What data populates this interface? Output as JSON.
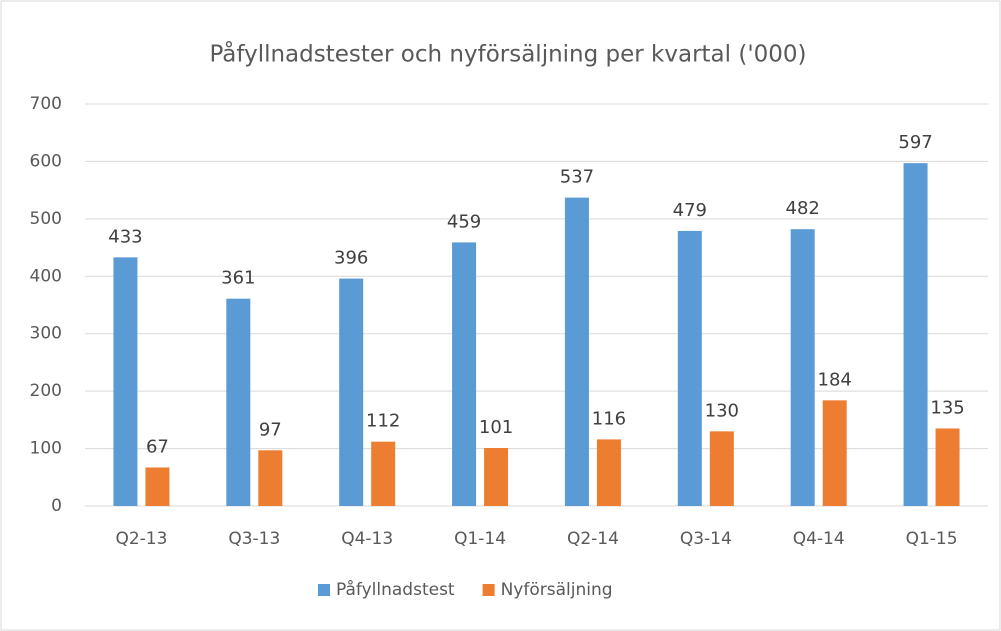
{
  "chart_data": {
    "type": "bar",
    "title": "Påfyllnadstester och nyförsäljning per kvartal ('000)",
    "categories": [
      "Q2-13",
      "Q3-13",
      "Q4-13",
      "Q1-14",
      "Q2-14",
      "Q3-14",
      "Q4-14",
      "Q1-15"
    ],
    "series": [
      {
        "name": "Påfyllnadstest",
        "color": "#5b9bd5",
        "values": [
          433,
          361,
          396,
          459,
          537,
          479,
          482,
          597
        ]
      },
      {
        "name": "Nyförsäljning",
        "color": "#ed7d31",
        "values": [
          67,
          97,
          112,
          101,
          116,
          130,
          184,
          135
        ]
      }
    ],
    "ylim": [
      0,
      700
    ],
    "yticks": [
      0,
      100,
      200,
      300,
      400,
      500,
      600,
      700
    ],
    "grid": true,
    "legend": "bottom"
  }
}
